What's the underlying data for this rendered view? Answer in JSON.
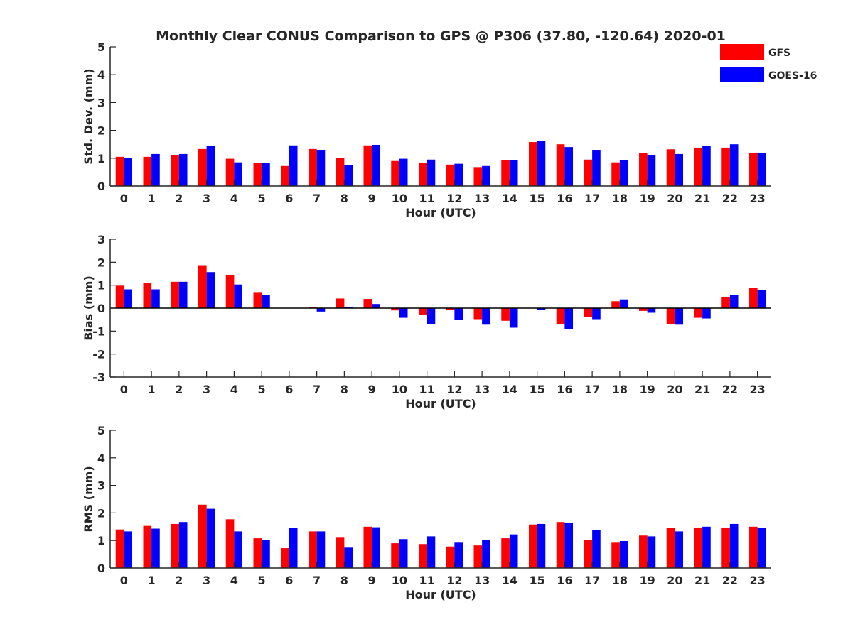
{
  "title": "Monthly Clear CONUS Comparison to GPS @ P306 (37.80, -120.64) 2020-01",
  "legend": {
    "placement": "top-right",
    "entries": [
      {
        "name": "GFS",
        "color": "#ff0000"
      },
      {
        "name": "GOES-16",
        "color": "#0000ff"
      }
    ]
  },
  "chart_data": [
    {
      "type": "bar",
      "ylabel": "Std. Dev. (mm)",
      "xlabel": "Hour (UTC)",
      "ylim": [
        0,
        5
      ],
      "yticks": [
        0,
        1,
        2,
        3,
        4,
        5
      ],
      "categories": [
        "0",
        "1",
        "2",
        "3",
        "4",
        "5",
        "6",
        "7",
        "8",
        "9",
        "10",
        "11",
        "12",
        "13",
        "14",
        "15",
        "16",
        "17",
        "18",
        "19",
        "20",
        "21",
        "22",
        "23"
      ],
      "series": [
        {
          "name": "GFS",
          "color": "#ff0000",
          "values": [
            1.05,
            1.05,
            1.1,
            1.33,
            0.98,
            0.82,
            0.72,
            1.33,
            1.02,
            1.46,
            0.9,
            0.82,
            0.77,
            0.68,
            0.93,
            1.58,
            1.5,
            0.95,
            0.85,
            1.18,
            1.32,
            1.38,
            1.38,
            1.2
          ]
        },
        {
          "name": "GOES-16",
          "color": "#0000ff",
          "values": [
            1.02,
            1.15,
            1.15,
            1.43,
            0.85,
            0.82,
            1.46,
            1.3,
            0.74,
            1.48,
            0.98,
            0.95,
            0.8,
            0.72,
            0.93,
            1.62,
            1.4,
            1.3,
            0.92,
            1.12,
            1.15,
            1.43,
            1.5,
            1.2
          ]
        }
      ]
    },
    {
      "type": "bar",
      "ylabel": "Bias (mm)",
      "xlabel": "Hour (UTC)",
      "ylim": [
        -3,
        3
      ],
      "yticks": [
        -3,
        -2,
        -1,
        0,
        1,
        2,
        3
      ],
      "categories": [
        "0",
        "1",
        "2",
        "3",
        "4",
        "5",
        "6",
        "7",
        "8",
        "9",
        "10",
        "11",
        "12",
        "13",
        "14",
        "15",
        "16",
        "17",
        "18",
        "19",
        "20",
        "21",
        "22",
        "23"
      ],
      "series": [
        {
          "name": "GFS",
          "color": "#ff0000",
          "values": [
            0.98,
            1.1,
            1.15,
            1.87,
            1.44,
            0.7,
            0.0,
            0.05,
            0.42,
            0.4,
            -0.1,
            -0.28,
            -0.08,
            -0.48,
            -0.55,
            0.0,
            -0.68,
            -0.4,
            0.3,
            -0.12,
            -0.7,
            -0.42,
            0.48,
            0.88
          ]
        },
        {
          "name": "GOES-16",
          "color": "#0000ff",
          "values": [
            0.82,
            0.82,
            1.15,
            1.57,
            1.03,
            0.58,
            0.0,
            -0.15,
            0.06,
            0.18,
            -0.42,
            -0.68,
            -0.5,
            -0.72,
            -0.85,
            -0.08,
            -0.9,
            -0.48,
            0.38,
            -0.2,
            -0.72,
            -0.45,
            0.57,
            0.78
          ]
        }
      ]
    },
    {
      "type": "bar",
      "ylabel": "RMS (mm)",
      "xlabel": "Hour (UTC)",
      "ylim": [
        0,
        5
      ],
      "yticks": [
        0,
        1,
        2,
        3,
        4,
        5
      ],
      "categories": [
        "0",
        "1",
        "2",
        "3",
        "4",
        "5",
        "6",
        "7",
        "8",
        "9",
        "10",
        "11",
        "12",
        "13",
        "14",
        "15",
        "16",
        "17",
        "18",
        "19",
        "20",
        "21",
        "22",
        "23"
      ],
      "series": [
        {
          "name": "GFS",
          "color": "#ff0000",
          "values": [
            1.4,
            1.53,
            1.6,
            2.3,
            1.77,
            1.08,
            0.72,
            1.33,
            1.1,
            1.5,
            0.9,
            0.87,
            0.78,
            0.82,
            1.08,
            1.58,
            1.67,
            1.02,
            0.92,
            1.18,
            1.45,
            1.47,
            1.47,
            1.5
          ]
        },
        {
          "name": "GOES-16",
          "color": "#0000ff",
          "values": [
            1.33,
            1.43,
            1.67,
            2.15,
            1.33,
            1.02,
            1.46,
            1.33,
            0.74,
            1.48,
            1.05,
            1.15,
            0.92,
            1.02,
            1.22,
            1.6,
            1.65,
            1.38,
            0.98,
            1.15,
            1.33,
            1.5,
            1.6,
            1.45
          ]
        }
      ]
    }
  ]
}
